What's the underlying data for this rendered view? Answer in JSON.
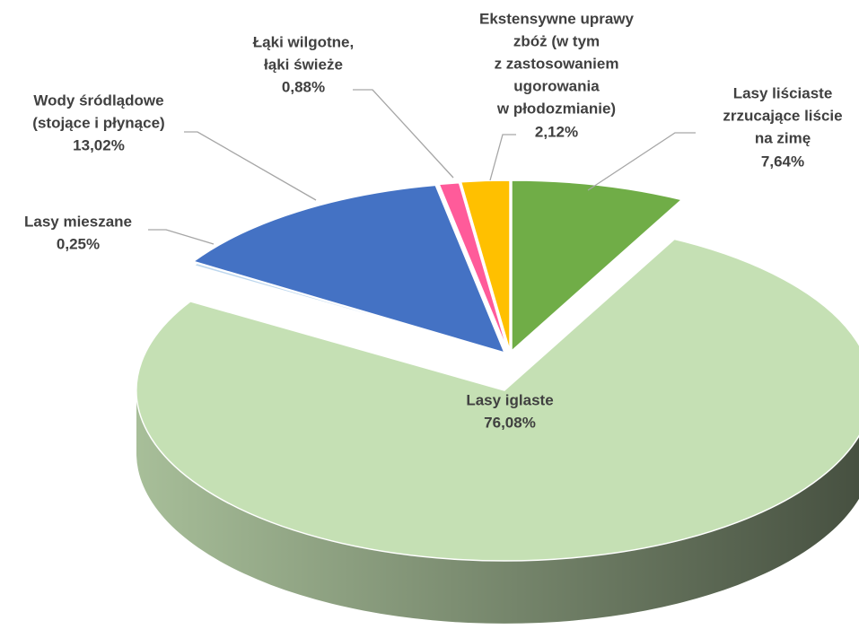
{
  "chart_data": {
    "type": "pie3d",
    "categories": [
      [
        "Lasy liściaste",
        "zrzucające liście",
        "na zimę"
      ],
      [
        "Lasy iglaste"
      ],
      [
        "Lasy mieszane"
      ],
      [
        "Wody śródlądowe",
        "(stojące i płynące)"
      ],
      [
        "Łąki wilgotne,",
        "łąki świeże"
      ],
      [
        "Ekstensywne uprawy",
        "zbóż (w tym",
        "z zastosowaniem",
        "ugorowania",
        "w płodozmianie)"
      ]
    ],
    "values": [
      7.64,
      76.08,
      0.25,
      13.02,
      0.88,
      2.12
    ],
    "value_labels": [
      "7,64%",
      "76,08%",
      "0,25%",
      "13,02%",
      "0,88%",
      "2,12%"
    ],
    "colors": [
      "#70ad47",
      "#c5e0b4",
      "#bdd7ee",
      "#4472c4",
      "#ff5b9a",
      "#ffc000"
    ]
  }
}
